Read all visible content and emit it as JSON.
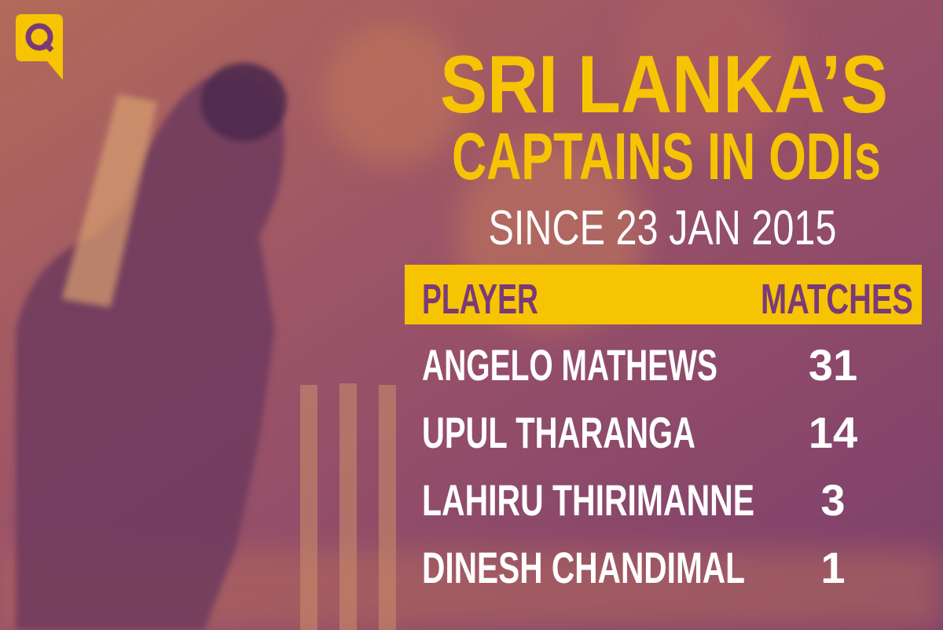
{
  "header": {
    "title_lines": [
      "SRI LANKA’S",
      "CAPTAINS IN ODIs"
    ],
    "subtitle": "SINCE 23 JAN 2015"
  },
  "table": {
    "columns": [
      "PLAYER",
      "MATCHES"
    ],
    "rows": [
      [
        "ANGELO MATHEWS",
        "31"
      ],
      [
        "UPUL THARANGA",
        "14"
      ],
      [
        "LAHIRU THIRIMANNE",
        "3"
      ],
      [
        "DINESH CHANDIMAL",
        "1"
      ]
    ]
  }
}
